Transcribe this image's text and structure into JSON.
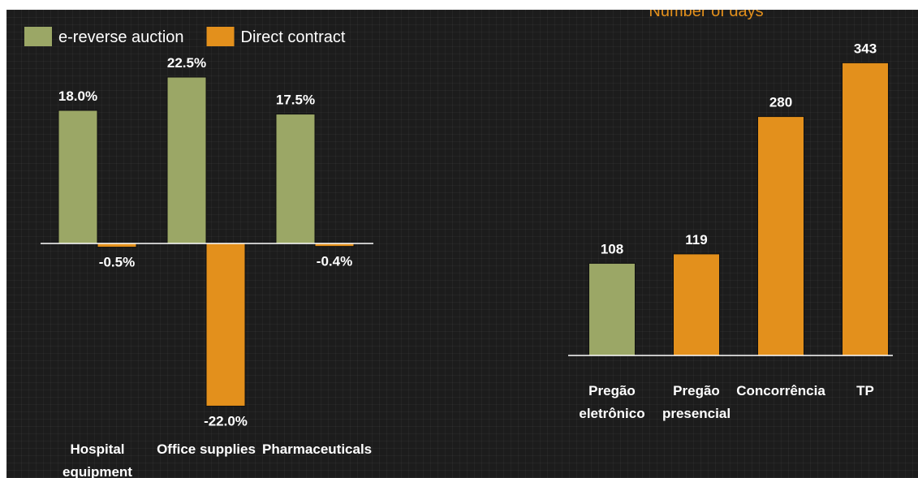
{
  "chart_data": [
    {
      "type": "bar",
      "categories": [
        "Hospital equipment",
        "Office supplies",
        "Pharmaceuticals"
      ],
      "series": [
        {
          "name": "e-reverse auction",
          "color": "#9ba766",
          "values": [
            18.0,
            22.5,
            17.5
          ],
          "value_labels": [
            "18.0%",
            "22.5%",
            "17.5%"
          ]
        },
        {
          "name": "Direct contract",
          "color": "#e3901c",
          "values": [
            -0.5,
            -22.0,
            -0.4
          ],
          "value_labels": [
            "-0.5%",
            "-22.0%",
            "-0.4%"
          ]
        }
      ],
      "ylim": [
        -22.5,
        22.5
      ],
      "legend": "top-left"
    },
    {
      "type": "bar",
      "title": "Number of days",
      "categories": [
        "Pregão eletrônico",
        "Pregão presencial",
        "Concorrência",
        "TP"
      ],
      "values": [
        108,
        119,
        280,
        343
      ],
      "colors": [
        "#9ba766",
        "#e3901c",
        "#e3901c",
        "#e3901c"
      ],
      "ylim": [
        0,
        350
      ]
    }
  ]
}
